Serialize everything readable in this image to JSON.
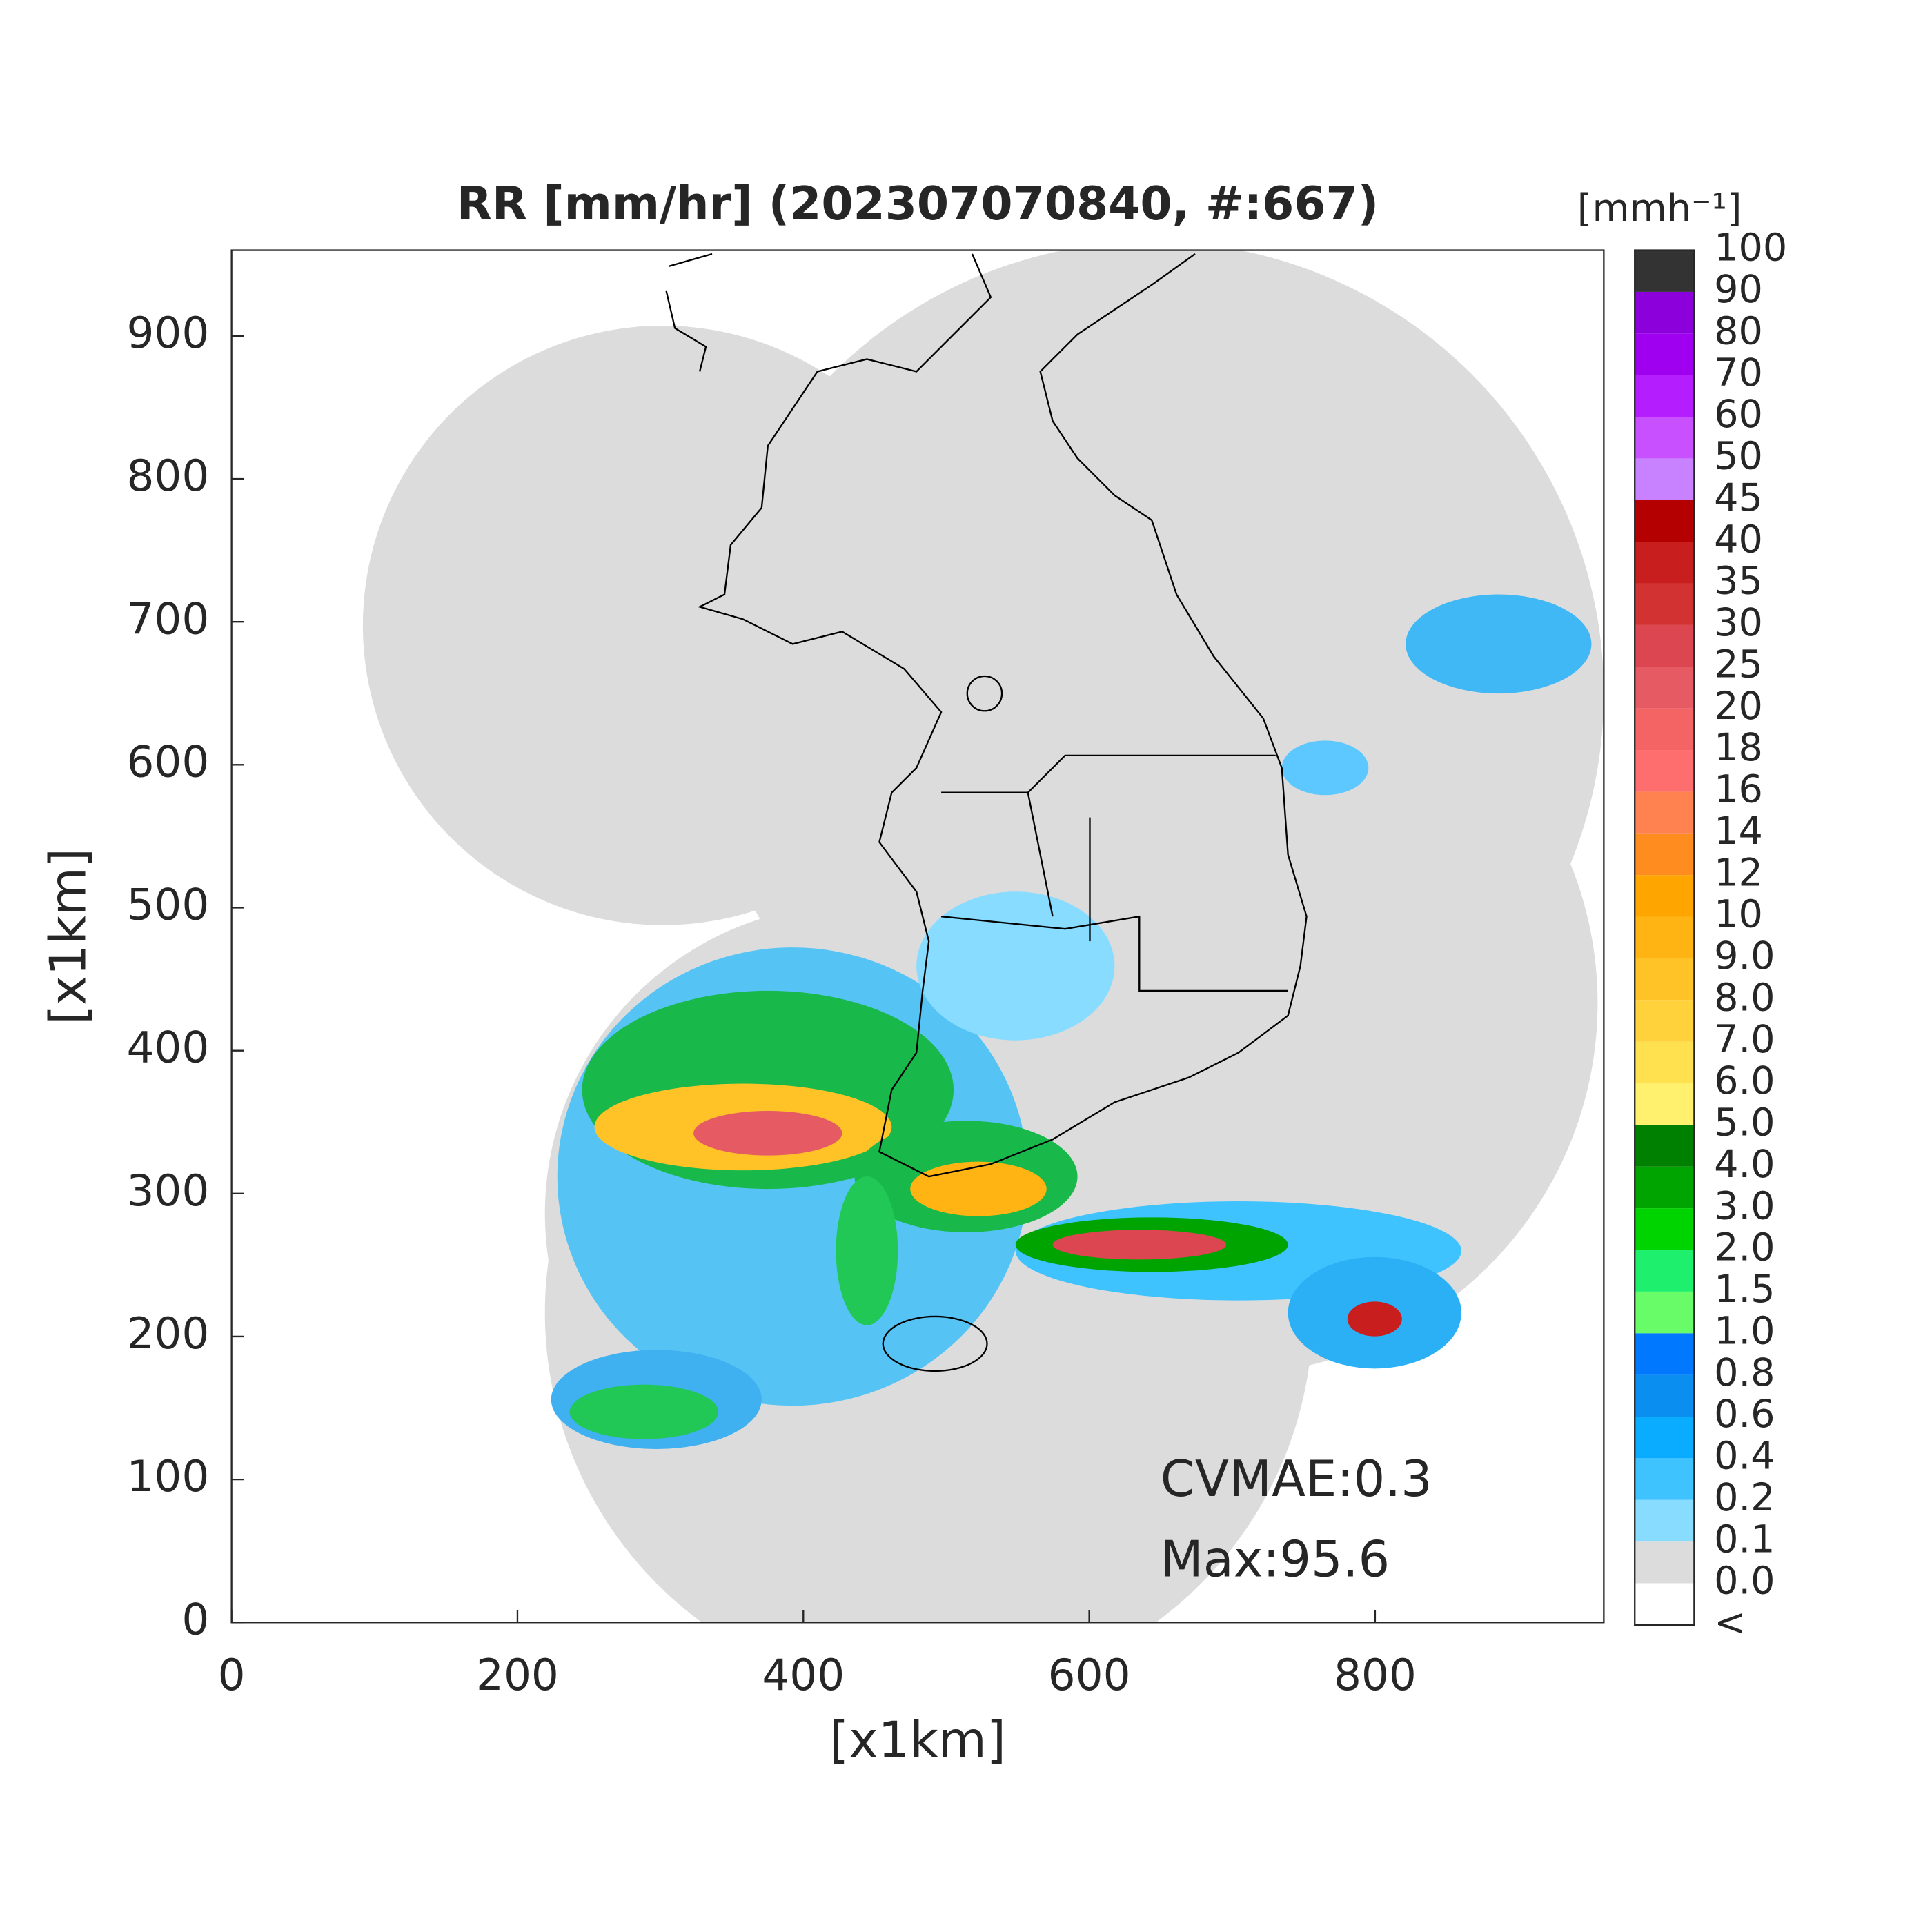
{
  "chart_data": {
    "type": "radar-map",
    "title": "RR [mm/hr] (202307070840, #:667)",
    "x_label": "[x1km]",
    "y_label": "[x1km]",
    "xlim": [
      0,
      960
    ],
    "ylim": [
      0,
      960
    ],
    "xticks": [
      0,
      200,
      400,
      600,
      800
    ],
    "yticks": [
      0,
      100,
      200,
      300,
      400,
      500,
      600,
      700,
      800,
      900
    ],
    "colorbar_label": "[mmh⁻¹]",
    "colorbar_levels": [
      "<",
      "0.0",
      "0.1",
      "0.2",
      "0.4",
      "0.6",
      "0.8",
      "1.0",
      "1.5",
      "2.0",
      "3.0",
      "4.0",
      "5.0",
      "6.0",
      "7.0",
      "8.0",
      "9.0",
      "10",
      "12",
      "14",
      "16",
      "18",
      "20",
      "25",
      "30",
      "35",
      "40",
      "45",
      "50",
      "60",
      "70",
      "80",
      "90",
      "100"
    ],
    "colorbar_colors": [
      "#ffffff",
      "#dcdcdc",
      "#87dcff",
      "#3fc3ff",
      "#0aacff",
      "#0a8ef0",
      "#0078ff",
      "#69fc69",
      "#1ef06e",
      "#00d400",
      "#00a400",
      "#008000",
      "#fff06e",
      "#ffe150",
      "#ffd23c",
      "#ffc328",
      "#ffb414",
      "#ffa500",
      "#ff8c1e",
      "#ff8250",
      "#ff6e6e",
      "#f56464",
      "#e65a64",
      "#dc4650",
      "#d23232",
      "#c81e1e",
      "#b40000",
      "#c882ff",
      "#c850ff",
      "#b41eff",
      "#a000f0",
      "#8c00dc",
      "#333333"
    ],
    "annotations": [
      "CVMAE:0.3",
      "Max:95.6"
    ]
  }
}
